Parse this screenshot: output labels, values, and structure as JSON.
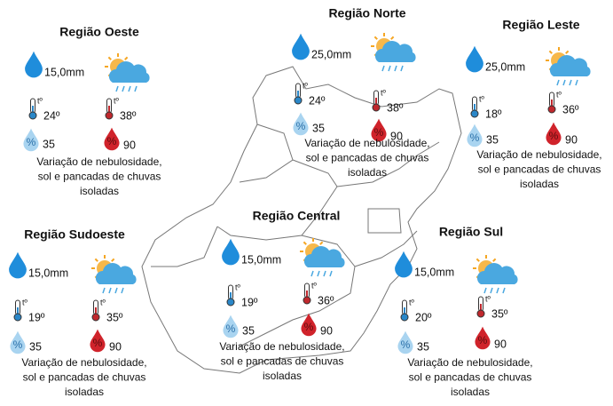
{
  "temp_symbol": "tº",
  "humidity_symbol": "%",
  "regions": [
    {
      "name": "Região Oeste",
      "rain": "15,0mm",
      "temp_min": "24º",
      "temp_max": "38º",
      "humidity_min": "35",
      "humidity_max": "90",
      "description": [
        "Variação de nebulosidade,",
        "sol e pancadas de chuvas",
        "isoladas"
      ]
    },
    {
      "name": "Região Norte",
      "rain": "25,0mm",
      "temp_min": "24º",
      "temp_max": "38º",
      "humidity_min": "35",
      "humidity_max": "90",
      "description": [
        "Variação de nebulosidade,",
        "sol e pancadas de chuvas",
        "isoladas"
      ]
    },
    {
      "name": "Região Leste",
      "rain": "25,0mm",
      "temp_min": "18º",
      "temp_max": "36º",
      "humidity_min": "35",
      "humidity_max": "90",
      "description": [
        "Variação de nebulosidade,",
        "sol e pancadas de chuvas",
        "isoladas"
      ]
    },
    {
      "name": "Região Sudoeste",
      "rain": "15,0mm",
      "temp_min": "19º",
      "temp_max": "35º",
      "humidity_min": "35",
      "humidity_max": "90",
      "description": [
        "Variação de nebulosidade,",
        "sol e pancadas de chuvas",
        "isoladas"
      ]
    },
    {
      "name": "Região Central",
      "rain": "15,0mm",
      "temp_min": "19º",
      "temp_max": "36º",
      "humidity_min": "35",
      "humidity_max": "90",
      "description": [
        "Variação de nebulosidade,",
        "sol e pancadas de chuvas",
        "isoladas"
      ]
    },
    {
      "name": "Região Sul",
      "rain": "15,0mm",
      "temp_min": "20º",
      "temp_max": "35º",
      "humidity_min": "35",
      "humidity_max": "90",
      "description": [
        "Variação de nebulosidade,",
        "sol e pancadas de chuvas",
        "isoladas"
      ]
    }
  ]
}
